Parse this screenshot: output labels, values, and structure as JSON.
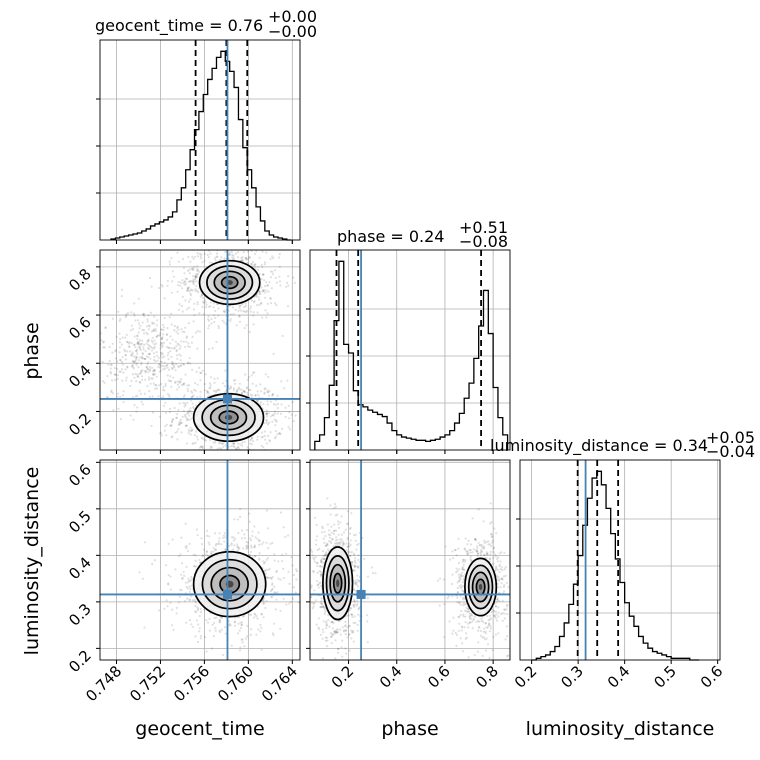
{
  "chart_data": {
    "type": "corner",
    "parameters": [
      "geocent_time",
      "phase",
      "luminosity_distance"
    ],
    "axis_labels": {
      "geocent_time": "geocent_time",
      "phase": "phase",
      "luminosity_distance": "luminosity_distance"
    },
    "titles": [
      {
        "param": "geocent_time",
        "text": "geocent_time = 0.76",
        "plus": "+0.00",
        "minus": "−0.00"
      },
      {
        "param": "phase",
        "text": "phase = 0.24",
        "plus": "+0.51",
        "minus": "−0.08"
      },
      {
        "param": "luminosity_distance",
        "text": "luminosity_distance = 0.34",
        "plus": "+0.05",
        "minus": "−0.04"
      }
    ],
    "ranges": {
      "geocent_time": [
        0.7465,
        0.7647
      ],
      "phase": [
        0.04,
        0.87
      ],
      "luminosity_distance": [
        0.175,
        0.605
      ]
    },
    "ticks": {
      "geocent_time": [
        "0.748",
        "0.752",
        "0.756",
        "0.760",
        "0.764"
      ],
      "phase": [
        "0.2",
        "0.4",
        "0.6",
        "0.8"
      ],
      "luminosity_distance": [
        "0.2",
        "0.3",
        "0.4",
        "0.5",
        "0.6"
      ]
    },
    "truths": {
      "geocent_time": 0.7581,
      "phase": 0.252,
      "luminosity_distance": 0.316
    },
    "quantiles": {
      "geocent_time": [
        0.7552,
        0.758,
        0.7599
      ],
      "phase": [
        0.15,
        0.24,
        0.75
      ],
      "luminosity_distance": [
        0.299,
        0.341,
        0.386
      ]
    },
    "histograms": {
      "geocent_time": {
        "bins": [
          0.7475,
          0.7479,
          0.7483,
          0.7487,
          0.7491,
          0.7495,
          0.7499,
          0.7503,
          0.7507,
          0.7511,
          0.7515,
          0.7519,
          0.7523,
          0.7527,
          0.7531,
          0.7535,
          0.7539,
          0.7543,
          0.7547,
          0.7551,
          0.7555,
          0.7559,
          0.7563,
          0.7567,
          0.7571,
          0.7575,
          0.7579,
          0.7583,
          0.7587,
          0.7591,
          0.7595,
          0.7599,
          0.7603,
          0.7607,
          0.7611,
          0.7615,
          0.7619,
          0.7623,
          0.7627,
          0.7631,
          0.7635,
          0.7639
        ],
        "counts": [
          1,
          2,
          3,
          4,
          5,
          6,
          7,
          9,
          11,
          14,
          16,
          18,
          20,
          23,
          28,
          40,
          52,
          70,
          90,
          110,
          128,
          145,
          160,
          171,
          182,
          188,
          178,
          168,
          152,
          120,
          92,
          70,
          52,
          33,
          19,
          9,
          5,
          3,
          2,
          1,
          0
        ]
      },
      "phase": {
        "bins": [
          0.06,
          0.08,
          0.1,
          0.12,
          0.14,
          0.16,
          0.18,
          0.2,
          0.22,
          0.24,
          0.26,
          0.28,
          0.3,
          0.32,
          0.34,
          0.36,
          0.38,
          0.4,
          0.42,
          0.44,
          0.46,
          0.48,
          0.5,
          0.52,
          0.54,
          0.56,
          0.58,
          0.6,
          0.62,
          0.64,
          0.66,
          0.68,
          0.7,
          0.72,
          0.74,
          0.76,
          0.78,
          0.8,
          0.82,
          0.84,
          0.86
        ],
        "counts": [
          8,
          14,
          30,
          60,
          120,
          175,
          98,
          90,
          55,
          42,
          40,
          37,
          35,
          33,
          31,
          25,
          18,
          14,
          12,
          11,
          10,
          9,
          9,
          8,
          9,
          10,
          12,
          14,
          18,
          25,
          34,
          48,
          62,
          85,
          115,
          148,
          108,
          58,
          30,
          14
        ]
      },
      "luminosity_distance": {
        "bins": [
          0.2,
          0.21,
          0.22,
          0.23,
          0.24,
          0.25,
          0.26,
          0.27,
          0.28,
          0.29,
          0.3,
          0.31,
          0.32,
          0.33,
          0.34,
          0.35,
          0.36,
          0.37,
          0.38,
          0.39,
          0.4,
          0.41,
          0.42,
          0.43,
          0.44,
          0.45,
          0.46,
          0.47,
          0.48,
          0.49,
          0.5,
          0.51,
          0.52,
          0.53,
          0.54,
          0.55,
          0.56
        ],
        "counts": [
          0,
          1,
          2,
          3,
          5,
          8,
          14,
          22,
          33,
          45,
          62,
          80,
          96,
          108,
          112,
          104,
          90,
          75,
          60,
          46,
          34,
          26,
          20,
          14,
          10,
          7,
          5,
          4,
          3,
          2,
          1,
          1,
          1,
          1,
          0,
          0
        ]
      }
    },
    "density_levels": [
      "0.5",
      "1.0",
      "1.5",
      "2.0"
    ],
    "density_2d": [
      {
        "x": "geocent_time",
        "y": "phase",
        "modes": [
          {
            "cx": 0.7582,
            "cy": 0.175,
            "sx": 0.00155,
            "sy": 0.048,
            "w": 1.0
          },
          {
            "cx": 0.7583,
            "cy": 0.735,
            "sx": 0.00145,
            "sy": 0.048,
            "w": 0.85
          }
        ],
        "scatter_extra": {
          "cx": 0.751,
          "cy": 0.43,
          "sx": 0.0022,
          "sy": 0.1
        }
      },
      {
        "x": "geocent_time",
        "y": "luminosity_distance",
        "modes": [
          {
            "cx": 0.7583,
            "cy": 0.338,
            "sx": 0.0016,
            "sy": 0.034,
            "w": 1.0
          }
        ]
      },
      {
        "x": "phase",
        "y": "luminosity_distance",
        "modes": [
          {
            "cx": 0.155,
            "cy": 0.34,
            "sx": 0.03,
            "sy": 0.038,
            "w": 1.0
          },
          {
            "cx": 0.748,
            "cy": 0.332,
            "sx": 0.036,
            "sy": 0.034,
            "w": 0.78
          }
        ]
      }
    ],
    "grid": true,
    "colors": {
      "truth": "#4682b4",
      "contour": "#000000",
      "grid": "#b0b0b0",
      "points": "#555555"
    }
  }
}
